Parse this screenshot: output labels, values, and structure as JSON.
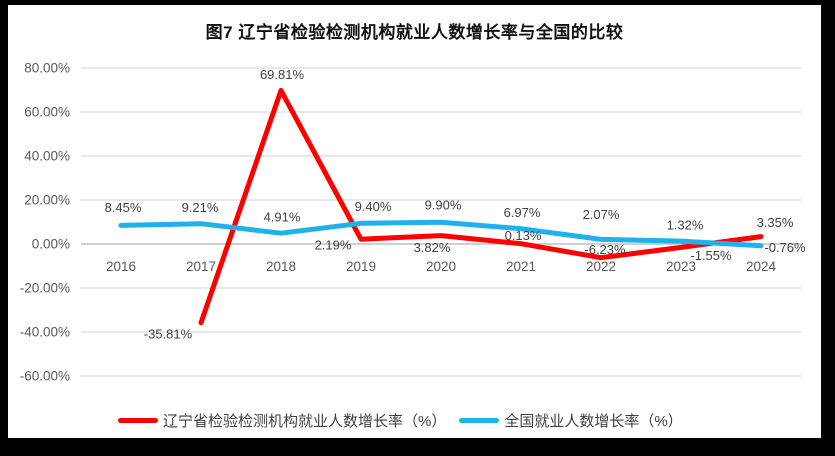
{
  "window": {
    "background": "#000000",
    "panel_background": "#FFFFFF"
  },
  "chart_data": {
    "type": "line",
    "title": "图7  辽宁省检验检测机构就业人数增长率与全国的比较",
    "categories": [
      "2016",
      "2017",
      "2018",
      "2019",
      "2020",
      "2021",
      "2022",
      "2023",
      "2024"
    ],
    "series": [
      {
        "name": "辽宁省检验检测机构就业人数增长率（%）",
        "color": "#FF0000",
        "values": [
          null,
          -35.81,
          69.81,
          2.19,
          3.82,
          0.13,
          -6.23,
          -1.55,
          3.35
        ],
        "data_labels": [
          "",
          "-35.81%",
          "69.81%",
          "2.19%",
          "3.82%",
          "0.13%",
          "-6.23%",
          "-1.55%",
          "3.35%"
        ]
      },
      {
        "name": "全国就业人数增长率（%）",
        "color": "#1FB1E8",
        "values": [
          8.45,
          9.21,
          4.91,
          9.4,
          9.9,
          6.97,
          2.07,
          1.32,
          -0.76
        ],
        "data_labels": [
          "8.45%",
          "9.21%",
          "4.91%",
          "9.40%",
          "9.90%",
          "6.97%",
          "2.07%",
          "1.32%",
          "-0.76%"
        ]
      }
    ],
    "y_axis": {
      "min": -60,
      "max": 80,
      "step": 20,
      "tick_labels": [
        "80.00%",
        "60.00%",
        "40.00%",
        "20.00%",
        "0.00%",
        "-20.00%",
        "-40.00%",
        "-60.00%"
      ]
    },
    "x_axis": {
      "tick_labels": [
        "2016",
        "2017",
        "2018",
        "2019",
        "2020",
        "2021",
        "2022",
        "2023",
        "2024"
      ]
    },
    "grid": true,
    "legend_position": "bottom",
    "colors": {
      "gridline": "#D9D9D9",
      "zero_axis_line": "#BFBFBF",
      "tick_text": "#595959",
      "data_label_text": "#404040"
    }
  }
}
